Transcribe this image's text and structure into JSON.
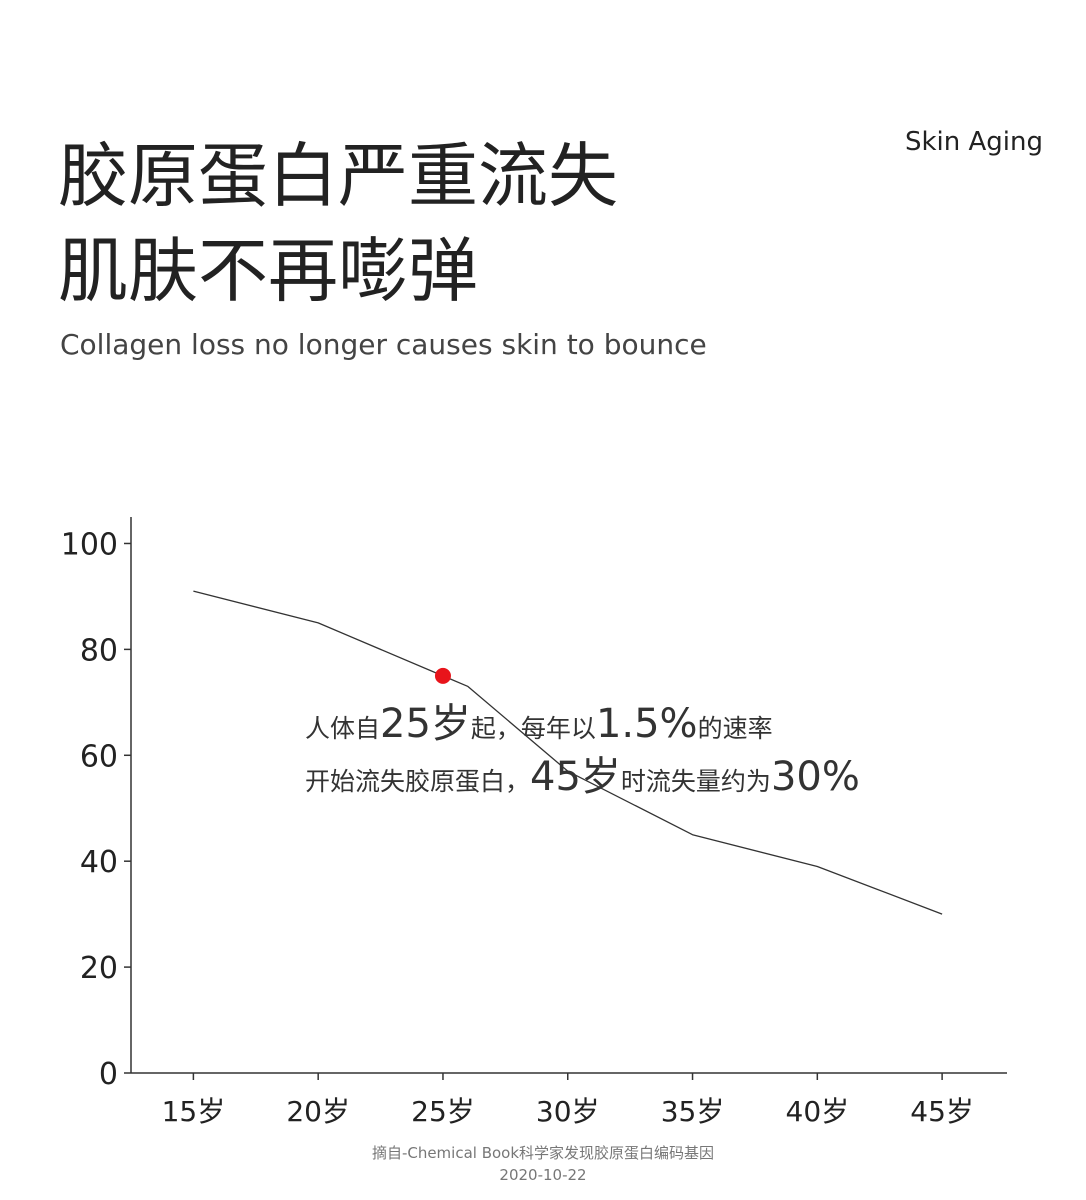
{
  "header": {
    "title_lines": [
      "胶原蛋白严重流失",
      "肌肤不再嘭弹"
    ],
    "subtitle": "Collagen loss no longer causes skin to bounce",
    "tag": "Skin Aging"
  },
  "chart_data": {
    "type": "line",
    "x": [
      15,
      20,
      25,
      26,
      30,
      35,
      40,
      45
    ],
    "series": [
      {
        "color": "#333333",
        "values": [
          91,
          85,
          75,
          73,
          57,
          45,
          39,
          30
        ]
      }
    ],
    "highlight": {
      "x": 25,
      "value": 75,
      "color": "#e8141b"
    },
    "xlim": [
      12.5,
      47.6
    ],
    "xticks": [
      {
        "value": 15,
        "label": "15岁"
      },
      {
        "value": 20,
        "label": "20岁"
      },
      {
        "value": 25,
        "label": "25岁"
      },
      {
        "value": 30,
        "label": "30岁"
      },
      {
        "value": 35,
        "label": "35岁"
      },
      {
        "value": 40,
        "label": "40岁"
      },
      {
        "value": 45,
        "label": "45岁"
      }
    ],
    "ylim": [
      0,
      105
    ],
    "yticks": [
      0,
      20,
      40,
      60,
      80,
      100
    ],
    "annotation_lines": [
      [
        "人体自",
        "25岁",
        "起，每年以",
        "1.5%",
        "的速率"
      ],
      [
        "开始流失胶原蛋白，",
        "45岁",
        "时流失量约为",
        "30%"
      ]
    ]
  },
  "source": [
    "摘自-Chemical Book科学家发现胶原蛋白编码基因",
    "2020-10-22"
  ]
}
